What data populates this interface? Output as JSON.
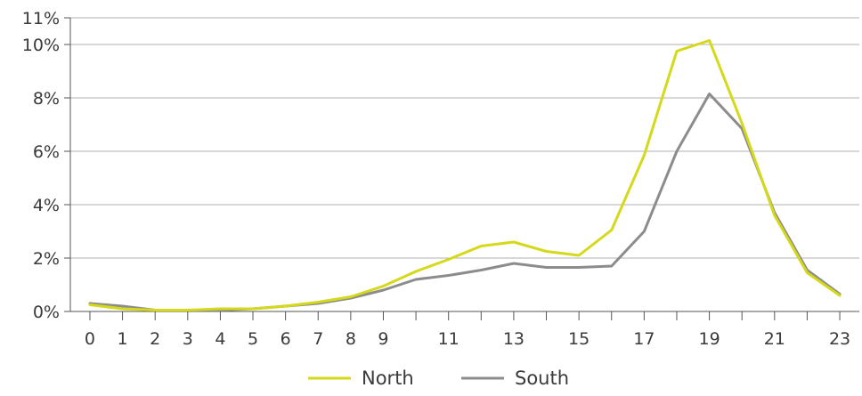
{
  "chart_data": {
    "type": "line",
    "title": "",
    "xlabel": "",
    "ylabel": "",
    "x": [
      0,
      1,
      2,
      3,
      4,
      5,
      6,
      7,
      8,
      9,
      10,
      11,
      12,
      13,
      14,
      15,
      16,
      17,
      18,
      19,
      20,
      21,
      22,
      23
    ],
    "x_tick_labels": [
      "0",
      "1",
      "2",
      "3",
      "4",
      "5",
      "6",
      "7",
      "8",
      "9",
      "11",
      "13",
      "15",
      "17",
      "19",
      "21",
      "23"
    ],
    "x_tick_values": [
      0,
      1,
      2,
      3,
      4,
      5,
      6,
      7,
      8,
      9,
      11,
      13,
      15,
      17,
      19,
      21,
      23
    ],
    "xlim": [
      -0.6,
      23.6
    ],
    "y_tick_labels": [
      "0%",
      "2%",
      "4%",
      "6%",
      "8%",
      "10%",
      "11%"
    ],
    "y_tick_values": [
      0,
      2,
      4,
      6,
      8,
      10,
      11
    ],
    "ylim": [
      0,
      11
    ],
    "grid": "horizontal",
    "legend_position": "bottom-center",
    "series": [
      {
        "name": "North",
        "color": "#d4d91a",
        "values": [
          0.25,
          0.1,
          0.05,
          0.05,
          0.1,
          0.1,
          0.2,
          0.35,
          0.55,
          0.95,
          1.5,
          1.95,
          2.45,
          2.6,
          2.25,
          2.1,
          3.05,
          5.85,
          9.75,
          10.15,
          7.05,
          3.6,
          1.45,
          0.6
        ]
      },
      {
        "name": "South",
        "color": "#8c8c8c",
        "values": [
          0.3,
          0.2,
          0.05,
          0.05,
          0.05,
          0.1,
          0.2,
          0.3,
          0.5,
          0.8,
          1.2,
          1.35,
          1.55,
          1.8,
          1.65,
          1.65,
          1.7,
          3.0,
          6.0,
          8.15,
          6.85,
          3.7,
          1.55,
          0.65
        ]
      }
    ]
  }
}
